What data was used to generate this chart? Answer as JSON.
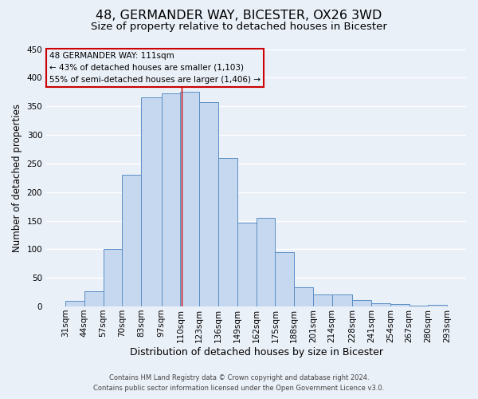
{
  "title1": "48, GERMANDER WAY, BICESTER, OX26 3WD",
  "title2": "Size of property relative to detached houses in Bicester",
  "xlabel": "Distribution of detached houses by size in Bicester",
  "ylabel": "Number of detached properties",
  "bar_left_edges": [
    31,
    44,
    57,
    70,
    83,
    97,
    110,
    123,
    136,
    149,
    162,
    175,
    188,
    201,
    214,
    228,
    241,
    254,
    267,
    280
  ],
  "bar_widths": [
    13,
    13,
    13,
    13,
    14,
    13,
    13,
    13,
    13,
    13,
    13,
    13,
    13,
    13,
    14,
    13,
    13,
    13,
    13,
    13
  ],
  "bar_heights": [
    10,
    27,
    100,
    230,
    365,
    372,
    375,
    357,
    260,
    147,
    155,
    95,
    34,
    21,
    21,
    11,
    5,
    4,
    1,
    3
  ],
  "xtick_labels": [
    "31sqm",
    "44sqm",
    "57sqm",
    "70sqm",
    "83sqm",
    "97sqm",
    "110sqm",
    "123sqm",
    "136sqm",
    "149sqm",
    "162sqm",
    "175sqm",
    "188sqm",
    "201sqm",
    "214sqm",
    "228sqm",
    "241sqm",
    "254sqm",
    "267sqm",
    "280sqm",
    "293sqm"
  ],
  "xtick_positions": [
    31,
    44,
    57,
    70,
    83,
    97,
    110,
    123,
    136,
    149,
    162,
    175,
    188,
    201,
    214,
    228,
    241,
    254,
    267,
    280,
    293
  ],
  "ytick_values": [
    0,
    50,
    100,
    150,
    200,
    250,
    300,
    350,
    400,
    450
  ],
  "ylim": [
    0,
    450
  ],
  "xlim": [
    18,
    306
  ],
  "bar_color": "#c5d8f0",
  "bar_edge_color": "#5b8ec4",
  "vline_x": 111,
  "vline_color": "#cc0000",
  "annotation_title": "48 GERMANDER WAY: 111sqm",
  "annotation_line1": "← 43% of detached houses are smaller (1,103)",
  "annotation_line2": "55% of semi-detached houses are larger (1,406) →",
  "annotation_box_color": "#cc0000",
  "footer1": "Contains HM Land Registry data © Crown copyright and database right 2024.",
  "footer2": "Contains public sector information licensed under the Open Government Licence v3.0.",
  "background_color": "#eaf0f8",
  "grid_color": "#ffffff",
  "title1_fontsize": 11.5,
  "title2_fontsize": 9.5,
  "xlabel_fontsize": 9,
  "ylabel_fontsize": 8.5,
  "tick_fontsize": 7.5,
  "annotation_fontsize": 7.5,
  "footer_fontsize": 6.0
}
